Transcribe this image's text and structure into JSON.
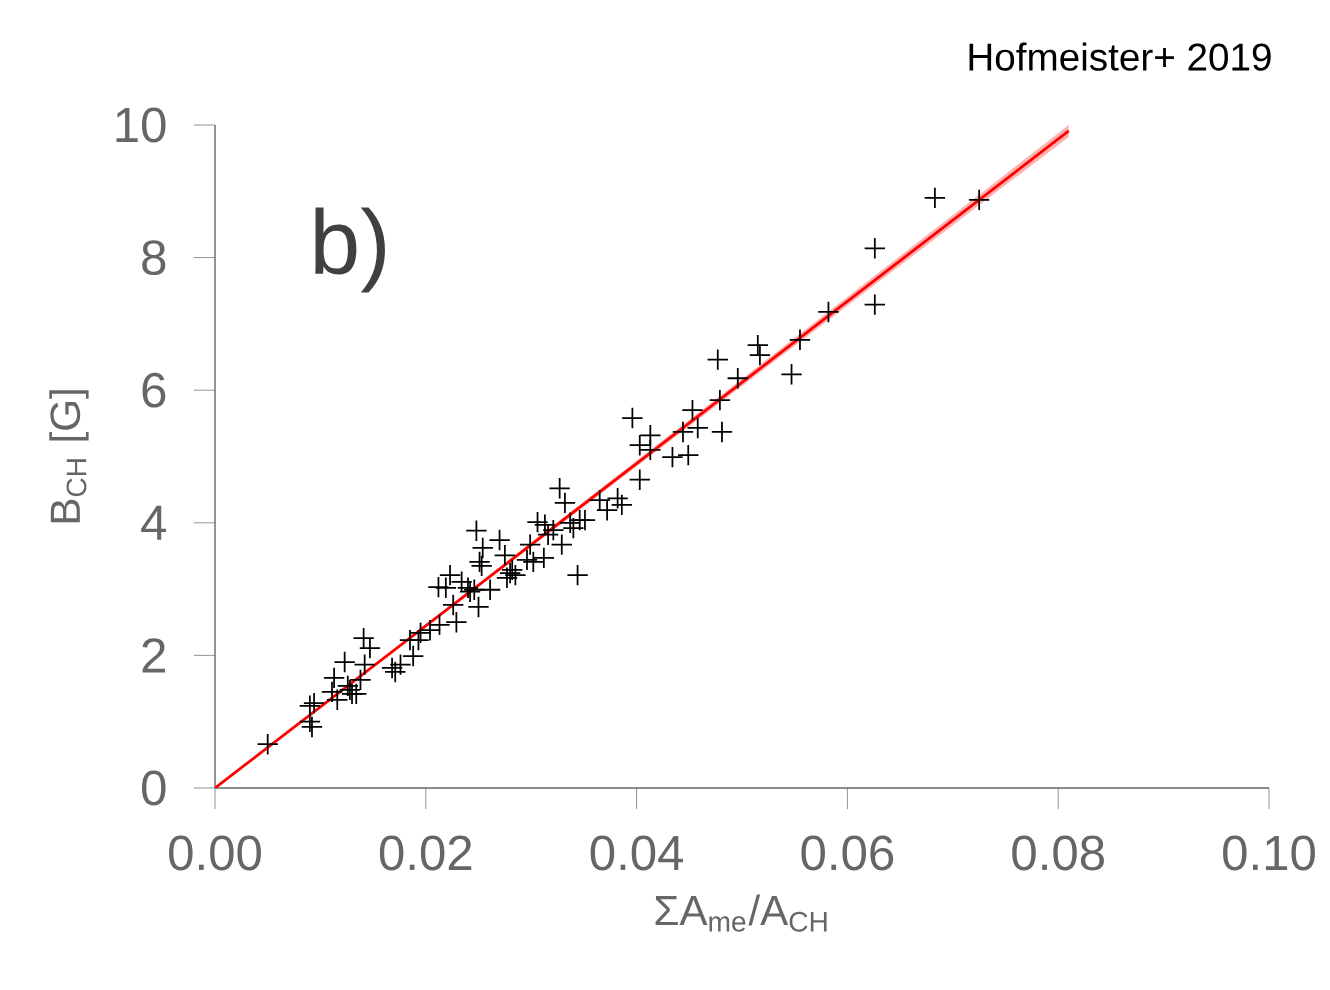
{
  "chart_data": {
    "type": "scatter",
    "xlabel": "ΣA$_{me}$/A$_{CH}$",
    "ylabel": "B$_{CH}$ [G]",
    "annotations": [
      "Hofmeister+ 2019",
      "b)"
    ],
    "xlim": [
      0,
      0.1
    ],
    "ylim": [
      0,
      10
    ],
    "xticks": [
      {
        "value": 0,
        "label": "0.00"
      },
      {
        "value": 0.02,
        "label": "0.02"
      },
      {
        "value": 0.04,
        "label": "0.04"
      },
      {
        "value": 0.06,
        "label": "0.06"
      },
      {
        "value": 0.08,
        "label": "0.08"
      },
      {
        "value": 0.1,
        "label": "0.10"
      }
    ],
    "yticks": [
      0,
      2,
      4,
      6,
      8,
      10
    ],
    "series": [
      {
        "color": "#000000",
        "marker": "cross",
        "x": [
          0.005,
          0.009,
          0.0094,
          0.0092,
          0.009,
          0.0113,
          0.0111,
          0.0116,
          0.0123,
          0.0126,
          0.0128,
          0.013,
          0.0134,
          0.0138,
          0.0141,
          0.0147,
          0.0142,
          0.0168,
          0.0171,
          0.0176,
          0.0185,
          0.0188,
          0.0193,
          0.0195,
          0.0204,
          0.0213,
          0.0212,
          0.0219,
          0.0223,
          0.0226,
          0.0229,
          0.0234,
          0.024,
          0.0242,
          0.0246,
          0.0248,
          0.0251,
          0.025,
          0.0254,
          0.0253,
          0.0261,
          0.027,
          0.0275,
          0.0277,
          0.028,
          0.0282,
          0.0285,
          0.0296,
          0.0299,
          0.0302,
          0.0306,
          0.0313,
          0.0312,
          0.0316,
          0.0321,
          0.0327,
          0.0329,
          0.0332,
          0.0337,
          0.034,
          0.0344,
          0.0346,
          0.0351,
          0.0365,
          0.0372,
          0.0382,
          0.0386,
          0.0396,
          0.0403,
          0.0403,
          0.0413,
          0.0413,
          0.0434,
          0.0444,
          0.0449,
          0.0453,
          0.0458,
          0.0477,
          0.0479,
          0.0481,
          0.0496,
          0.0515,
          0.0517,
          0.0547,
          0.0555,
          0.0582,
          0.0626,
          0.0626,
          0.0683,
          0.0725
        ],
        "values": [
          0.66,
          1.24,
          1.28,
          0.92,
          1.0,
          1.66,
          1.45,
          1.33,
          1.9,
          1.54,
          1.48,
          1.42,
          1.42,
          1.63,
          2.26,
          2.11,
          1.86,
          1.81,
          1.75,
          1.86,
          2.23,
          1.99,
          2.23,
          2.34,
          2.38,
          2.46,
          3.03,
          3.02,
          3.21,
          2.76,
          2.5,
          3.11,
          3.02,
          2.96,
          2.99,
          3.88,
          3.41,
          2.73,
          3.62,
          3.35,
          2.99,
          3.74,
          3.51,
          3.17,
          3.24,
          3.29,
          3.21,
          3.44,
          3.67,
          3.41,
          4.01,
          3.97,
          3.47,
          3.82,
          3.89,
          4.52,
          3.67,
          4.3,
          4.0,
          3.92,
          3.21,
          4.04,
          4.04,
          4.34,
          4.19,
          4.37,
          4.27,
          5.58,
          5.17,
          4.65,
          5.32,
          5.1,
          4.99,
          5.37,
          5.02,
          5.7,
          5.43,
          6.46,
          5.85,
          5.37,
          6.18,
          6.68,
          6.53,
          6.24,
          6.76,
          7.18,
          8.14,
          7.29,
          8.9,
          8.87
        ]
      },
      {
        "type": "line",
        "color": "#ff0000",
        "x": [
          0,
          0.081
        ],
        "values": [
          0,
          9.91
        ],
        "lower": [
          0,
          9.82
        ],
        "upper": [
          0,
          10
        ]
      }
    ]
  }
}
